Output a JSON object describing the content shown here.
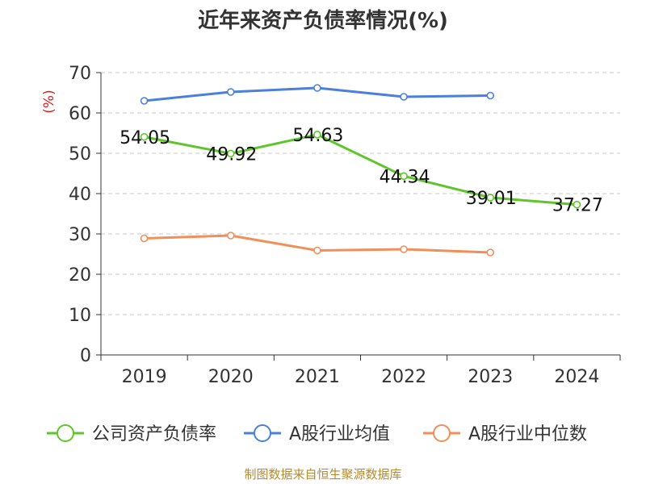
{
  "chart_data": {
    "type": "line",
    "title": "近年来资产负债率情况(%)",
    "ylabel": "(%)",
    "xlabel": "",
    "categories": [
      "2019",
      "2020",
      "2021",
      "2022",
      "2023",
      "2024"
    ],
    "ylim": [
      0,
      70
    ],
    "yticks": [
      0,
      10,
      20,
      30,
      40,
      50,
      60,
      70
    ],
    "grid": true,
    "legend": "bottom",
    "series": [
      {
        "name": "公司资产负债率",
        "color": "#5ec62b",
        "values": [
          54.05,
          49.92,
          54.63,
          44.34,
          39.01,
          37.27
        ],
        "labels": [
          "54.05",
          "49.92",
          "54.63",
          "44.34",
          "39.01",
          "37.27"
        ]
      },
      {
        "name": "A股行业均值",
        "color": "#4a7fdc",
        "values": [
          63.0,
          65.2,
          66.2,
          64.0,
          64.3,
          null
        ]
      },
      {
        "name": "A股行业中位数",
        "color": "#f28e5a",
        "values": [
          28.9,
          29.6,
          25.9,
          26.2,
          25.4,
          null
        ]
      }
    ]
  },
  "source": "制图数据来自恒生聚源数据库"
}
